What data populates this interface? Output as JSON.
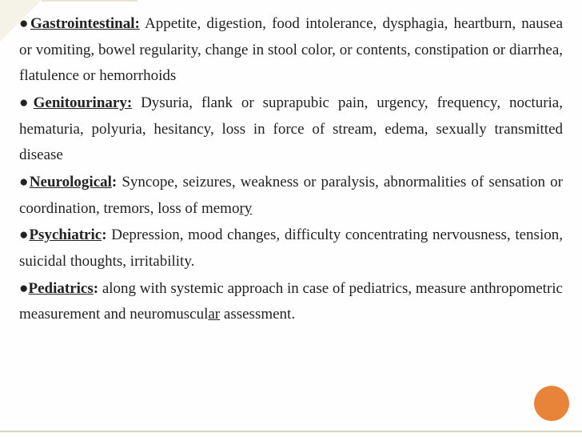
{
  "slide": {
    "background_color": "#fefefe",
    "accent_color": "#e8833a",
    "corner_color": "#f5f2e8",
    "text_color": "#222222",
    "font_family": "Georgia, Times New Roman, serif",
    "font_size_pt": 14,
    "line_height": 1.72,
    "text_align": "justify"
  },
  "items": [
    {
      "heading": "Gastrointestinal:",
      "heading_has_underline_on_colon": true,
      "body": " Appetite, digestion, food intolerance, dysphagia, heartburn, nausea or vomiting, bowel regularity, change in stool color, or contents, constipation or diarrhea, flatulence or hemorrhoids"
    },
    {
      "heading": "Genitourinary:",
      "heading_has_underline_on_colon": true,
      "body": " Dysuria, flank or suprapubic pain, urgency, frequency, nocturia, hematuria, polyuria, hesitancy, loss in force of stream, edema, sexually transmitted disease"
    },
    {
      "heading": "Neurological",
      "heading_has_underline_on_colon": false,
      "colon": ":",
      "body": " Syncope, seizures, weakness or paralysis, abnormalities of sensation or coordination, tremors, loss of memory",
      "trailing_underline": true
    },
    {
      "heading": "Psychiatric",
      "heading_has_underline_on_colon": false,
      "colon": ":",
      "body": " Depression, mood changes, difficulty concentrating nervousness, tension, suicidal thoughts, irritability."
    },
    {
      "heading": "Pediatrics",
      "heading_has_underline_on_colon": false,
      "colon": ":",
      "body": " along with systemic approach in case of pediatrics, measure anthropometric measurement and neuromuscular assessment.",
      "trailing_underline_word": "neuromuscular"
    }
  ]
}
